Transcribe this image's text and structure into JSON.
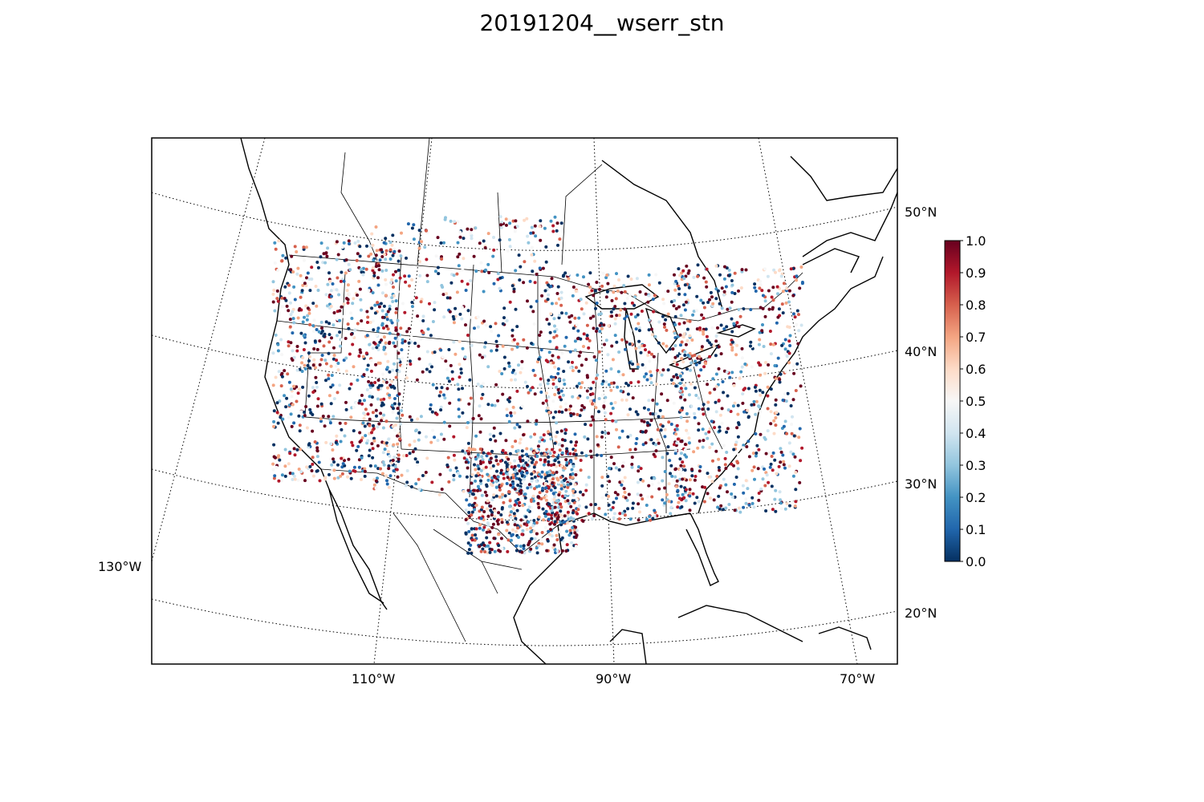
{
  "title": "20191204__wserr_stn",
  "map": {
    "projection": "conic",
    "lon_labels": [
      "130°W",
      "110°W",
      "90°W",
      "70°W"
    ],
    "lat_labels": [
      "50°N",
      "40°N",
      "30°N",
      "20°N"
    ],
    "gridlines": "dotted",
    "coastline_color": "#000000",
    "border_color": "#000000"
  },
  "colorbar": {
    "colormap": "RdBu_r",
    "min": 0.0,
    "max": 1.0,
    "tick_labels": [
      "1.0",
      "0.9",
      "0.8",
      "0.7",
      "0.6",
      "0.5",
      "0.4",
      "0.3",
      "0.2",
      "0.1",
      "0.0"
    ],
    "colors": [
      "#053061",
      "#2166ac",
      "#4393c3",
      "#92c5de",
      "#d1e5f0",
      "#f7f7f7",
      "#fddbc7",
      "#f4a582",
      "#d6604d",
      "#b2182b",
      "#67001f"
    ]
  },
  "scatter": {
    "variable": "wserr_stn",
    "point_count_approx": 6000,
    "high_value_color": "#b2182b",
    "low_value_color": "#2166ac"
  }
}
